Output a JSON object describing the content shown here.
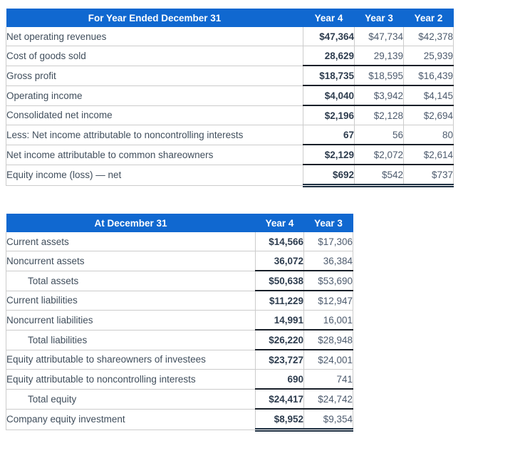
{
  "colors": {
    "header_bg": "#1068d0",
    "header_text": "#ffffff",
    "label_text": "#404e5c",
    "value_text": "#4d5b6e",
    "bold_value_text": "#2d3c4e",
    "grid_light": "#cccccc",
    "rule_dark": "#181f28"
  },
  "tables": [
    {
      "name": "income-statement-table",
      "title": "For Year Ended December 31",
      "columns": [
        "Year 4",
        "Year 3",
        "Year 2"
      ],
      "rows": [
        {
          "label": "Net operating revenues",
          "indent": false,
          "border": "light",
          "values": [
            "$47,364",
            "$47,734",
            "$42,378"
          ]
        },
        {
          "label": "Cost of goods sold",
          "indent": false,
          "border": "dark",
          "values": [
            "28,629",
            "29,139",
            "25,939"
          ]
        },
        {
          "label": "Gross profit",
          "indent": false,
          "border": "dark",
          "values": [
            "$18,735",
            "$18,595",
            "$16,439"
          ]
        },
        {
          "label": "Operating income",
          "indent": false,
          "border": "dark",
          "values": [
            "$4,040",
            "$3,942",
            "$4,145"
          ]
        },
        {
          "label": "Consolidated net income",
          "indent": false,
          "border": "light",
          "values": [
            "$2,196",
            "$2,128",
            "$2,694"
          ]
        },
        {
          "label": "Less: Net income attributable to noncontrolling interests",
          "indent": false,
          "border": "dark",
          "values": [
            "67",
            "56",
            "80"
          ]
        },
        {
          "label": "Net income attributable to common shareowners",
          "indent": false,
          "border": "dark",
          "values": [
            "$2,129",
            "$2,072",
            "$2,614"
          ]
        },
        {
          "label": "Equity income (loss) — net",
          "indent": false,
          "border": "double",
          "values": [
            "$692",
            "$542",
            "$737"
          ]
        }
      ]
    },
    {
      "name": "balance-sheet-table",
      "title": "At December 31",
      "columns": [
        "Year 4",
        "Year 3"
      ],
      "rows": [
        {
          "label": "Current assets",
          "indent": false,
          "border": "light",
          "values": [
            "$14,566",
            "$17,306"
          ]
        },
        {
          "label": "Noncurrent assets",
          "indent": false,
          "border": "dark",
          "values": [
            "36,072",
            "36,384"
          ]
        },
        {
          "label": "Total assets",
          "indent": true,
          "border": "dark",
          "values": [
            "$50,638",
            "$53,690"
          ]
        },
        {
          "label": "Current liabilities",
          "indent": false,
          "border": "light",
          "values": [
            "$11,229",
            "$12,947"
          ]
        },
        {
          "label": "Noncurrent liabilities",
          "indent": false,
          "border": "dark",
          "values": [
            "14,991",
            "16,001"
          ]
        },
        {
          "label": "Total liabilities",
          "indent": true,
          "border": "dark",
          "values": [
            "$26,220",
            "$28,948"
          ]
        },
        {
          "label": "Equity attributable to shareowners of investees",
          "indent": false,
          "border": "light",
          "values": [
            "$23,727",
            "$24,001"
          ]
        },
        {
          "label": "Equity attributable to noncontrolling interests",
          "indent": false,
          "border": "dark",
          "values": [
            "690",
            "741"
          ]
        },
        {
          "label": "Total equity",
          "indent": true,
          "border": "dark",
          "values": [
            "$24,417",
            "$24,742"
          ]
        },
        {
          "label": "Company equity investment",
          "indent": false,
          "border": "double",
          "values": [
            "$8,952",
            "$9,354"
          ]
        }
      ]
    }
  ]
}
